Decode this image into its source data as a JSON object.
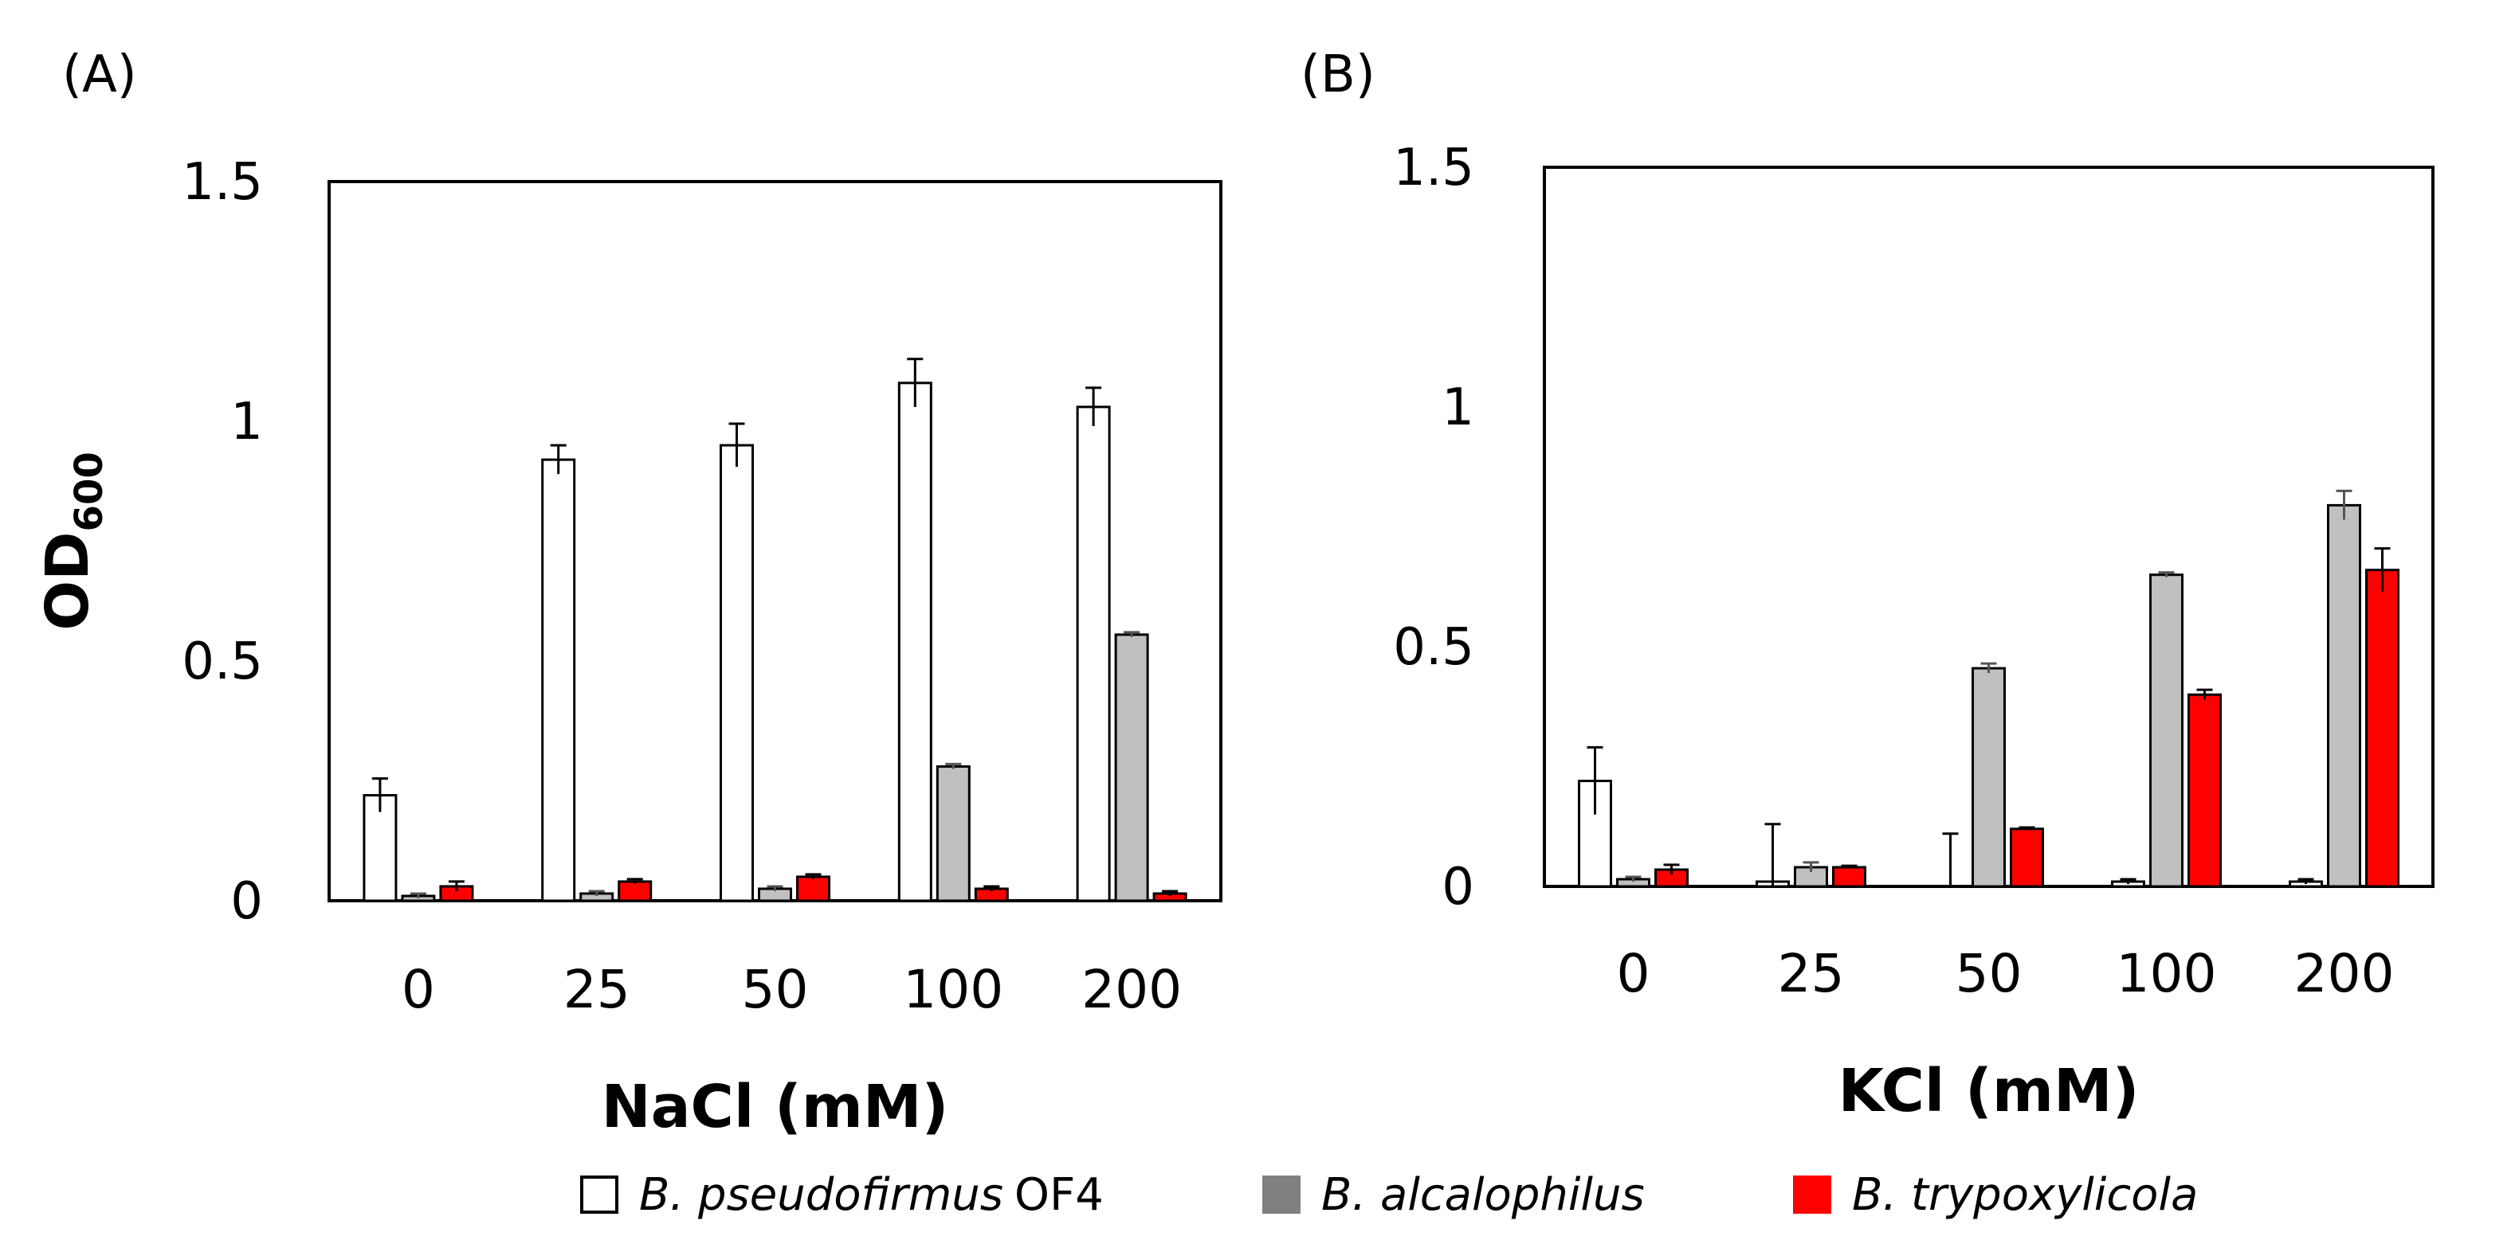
{
  "chart_data": [
    {
      "type": "bar",
      "panel_label": "(A)",
      "title": "",
      "xlabel": "NaCl (mM)",
      "ylabel": "OD",
      "ylabel_subscript": "600",
      "ylim": [
        0,
        1.5
      ],
      "yticks": [
        "0",
        "0.5",
        "1",
        "1.5"
      ],
      "categories": [
        "0",
        "25",
        "50",
        "100",
        "200"
      ],
      "series": [
        {
          "name": "B. pseudofirmus OF4",
          "values": [
            0.22,
            0.92,
            0.95,
            1.08,
            1.03
          ],
          "errors": [
            0.035,
            0.03,
            0.045,
            0.05,
            0.04
          ]
        },
        {
          "name": "B. alcalophilus",
          "values": [
            0.01,
            0.015,
            0.025,
            0.28,
            0.555
          ],
          "errors": [
            0.005,
            0.005,
            0.005,
            0.005,
            0.005
          ]
        },
        {
          "name": "B. trypoxylicola",
          "values": [
            0.03,
            0.04,
            0.05,
            0.025,
            0.015
          ],
          "errors": [
            0.01,
            0.005,
            0.005,
            0.005,
            0.005
          ]
        }
      ]
    },
    {
      "type": "bar",
      "panel_label": "(B)",
      "title": "",
      "xlabel": "KCl (mM)",
      "ylabel": "",
      "ylim": [
        0,
        1.5
      ],
      "yticks": [
        "0",
        "0.5",
        "1",
        "1.5"
      ],
      "categories": [
        "0",
        "25",
        "50",
        "100",
        "200"
      ],
      "series": [
        {
          "name": "B. pseudofirmus OF4",
          "values": [
            0.22,
            0.01,
            0.0,
            0.01,
            0.01
          ],
          "errors": [
            0.07,
            0.12,
            0.11,
            0.005,
            0.005
          ]
        },
        {
          "name": "B. alcalophilus",
          "values": [
            0.015,
            0.04,
            0.455,
            0.65,
            0.795
          ],
          "errors": [
            0.005,
            0.01,
            0.01,
            0.005,
            0.03
          ]
        },
        {
          "name": "B. trypoxylicola",
          "values": [
            0.035,
            0.04,
            0.12,
            0.4,
            0.66
          ],
          "errors": [
            0.01,
            0.003,
            0.003,
            0.01,
            0.045
          ]
        }
      ]
    }
  ],
  "legend": [
    {
      "name": "B. pseudofirmus",
      "suffix": "OF4",
      "fill": "#ffffff",
      "stroke": "#000000"
    },
    {
      "name": "B. alcalophilus",
      "suffix": "",
      "fill": "#808080",
      "stroke": "#808080"
    },
    {
      "name": "B. trypoxylicola",
      "suffix": "",
      "fill": "#ff0000",
      "stroke": "#ff0000"
    }
  ],
  "colors": {
    "series_fill": [
      "#ffffff",
      "#c0c0c0",
      "#ff0000"
    ],
    "axis": "#000000",
    "error_bar": [
      "#000000",
      "#555555",
      "#000000"
    ]
  }
}
